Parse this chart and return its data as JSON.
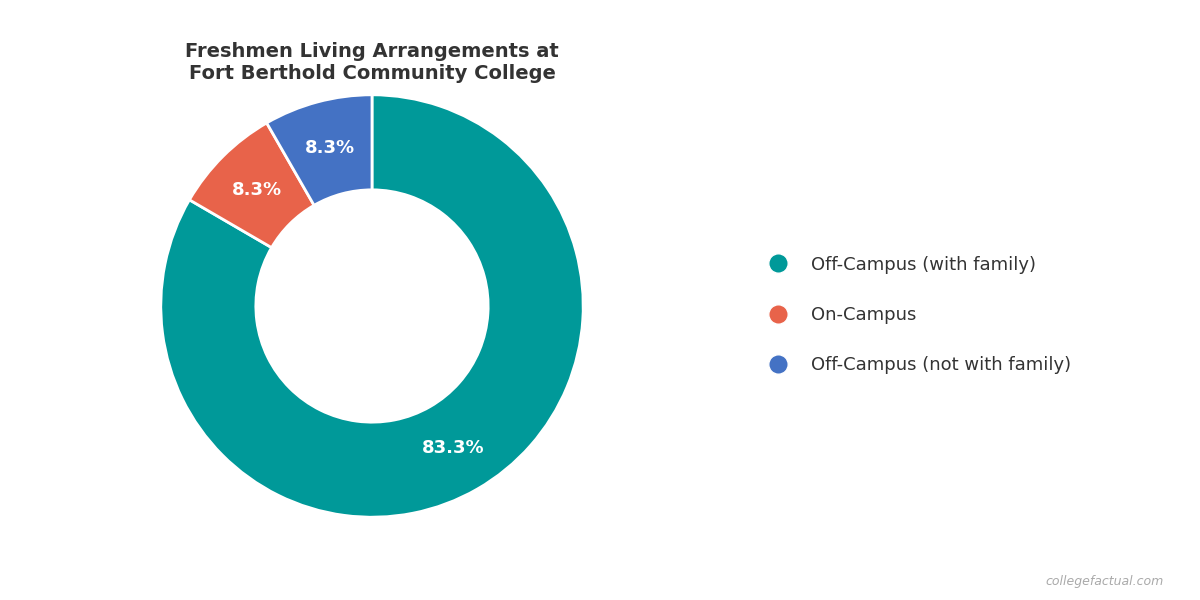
{
  "title": "Freshmen Living Arrangements at\nFort Berthold Community College",
  "slices": [
    83.3,
    8.3,
    8.3
  ],
  "labels": [
    "Off-Campus (with family)",
    "On-Campus",
    "Off-Campus (not with family)"
  ],
  "colors": [
    "#009999",
    "#E8634A",
    "#4472C4"
  ],
  "pct_labels": [
    "83.3%",
    "8.3%",
    "8.3%"
  ],
  "start_angle": 90,
  "donut_width": 0.45,
  "background_color": "#ffffff",
  "title_fontsize": 14,
  "legend_fontsize": 13,
  "pct_fontsize": 13,
  "watermark": "collegefactual.com"
}
